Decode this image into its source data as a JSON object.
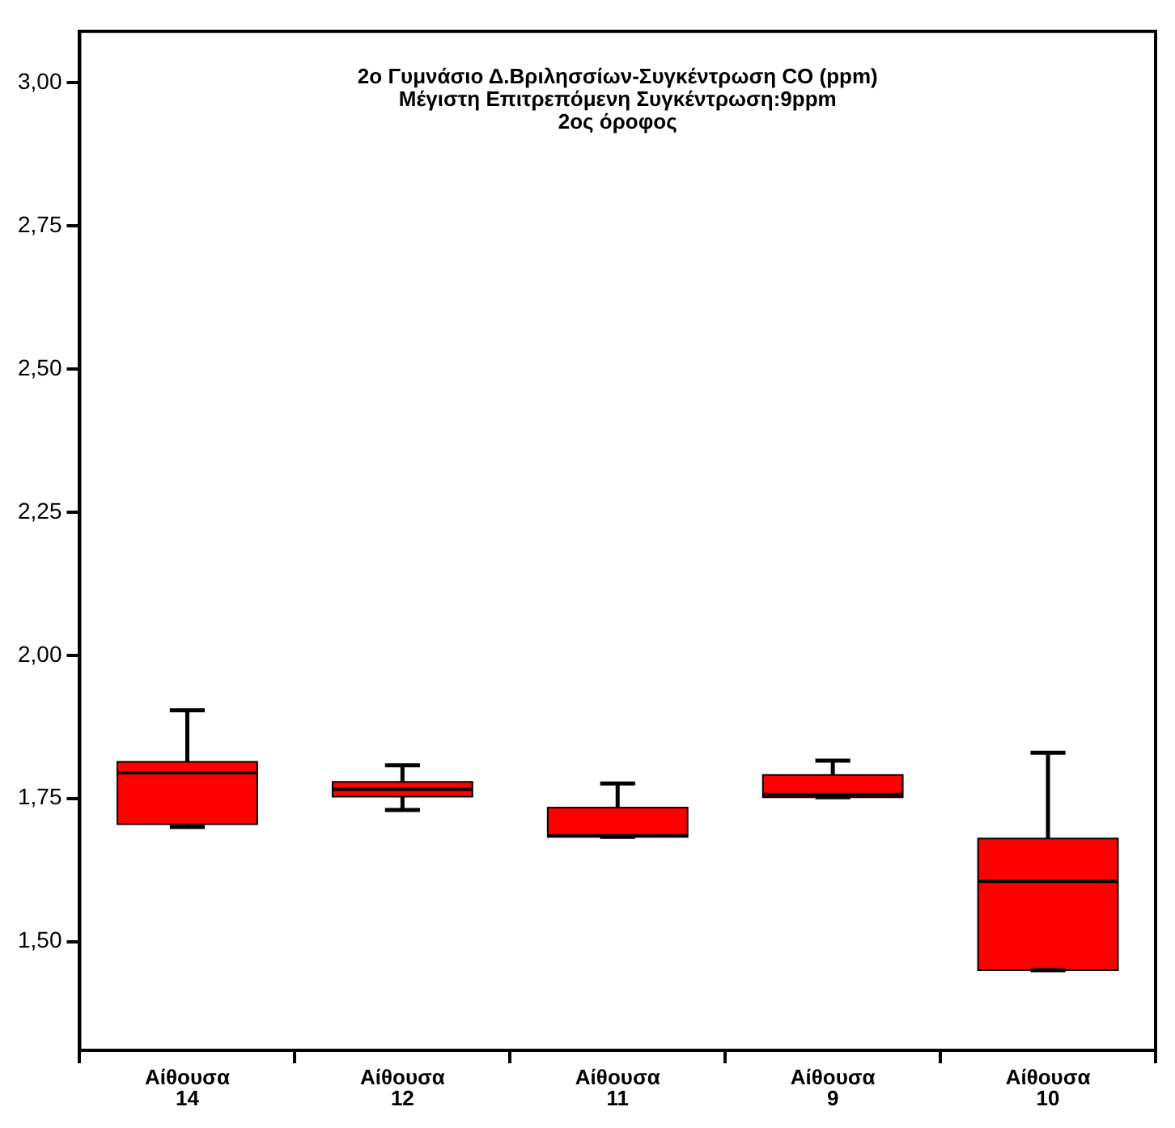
{
  "chart_data": {
    "type": "box",
    "title": "2ο Γυμνάσιο Δ.Βριλησσίων-Συγκέντρωση CO (ppm)\nΜέγιστη Επιτρεπόμενη Συγκέντρωση:9ppm\n2ος όροφος",
    "categories": [
      "Αίθουσα 14",
      "Αίθουσα 12",
      "Αίθουσα 11",
      "Αίθουσα 9",
      "Αίθουσα 10"
    ],
    "color": "#ff0000",
    "boxes": [
      {
        "low": 1.7,
        "q1": 1.705,
        "median": 1.795,
        "q3": 1.814,
        "high": 1.904
      },
      {
        "low": 1.73,
        "q1": 1.753,
        "median": 1.766,
        "q3": 1.779,
        "high": 1.808
      },
      {
        "low": 1.683,
        "q1": 1.683,
        "median": 1.685,
        "q3": 1.734,
        "high": 1.776
      },
      {
        "low": 1.752,
        "q1": 1.752,
        "median": 1.757,
        "q3": 1.791,
        "high": 1.816
      },
      {
        "low": 1.45,
        "q1": 1.45,
        "median": 1.605,
        "q3": 1.68,
        "high": 1.83
      }
    ],
    "ylim": [
      1.31,
      3.09
    ],
    "yticks": [
      {
        "value": 1.5,
        "label": "1,50"
      },
      {
        "value": 1.75,
        "label": "1,75"
      },
      {
        "value": 2,
        "label": "2,00"
      },
      {
        "value": 2.25,
        "label": "2,25"
      },
      {
        "value": 2.5,
        "label": "2,50"
      },
      {
        "value": 2.75,
        "label": "2,75"
      },
      {
        "value": 3,
        "label": "3,00"
      }
    ],
    "grid": false,
    "legend": false
  }
}
